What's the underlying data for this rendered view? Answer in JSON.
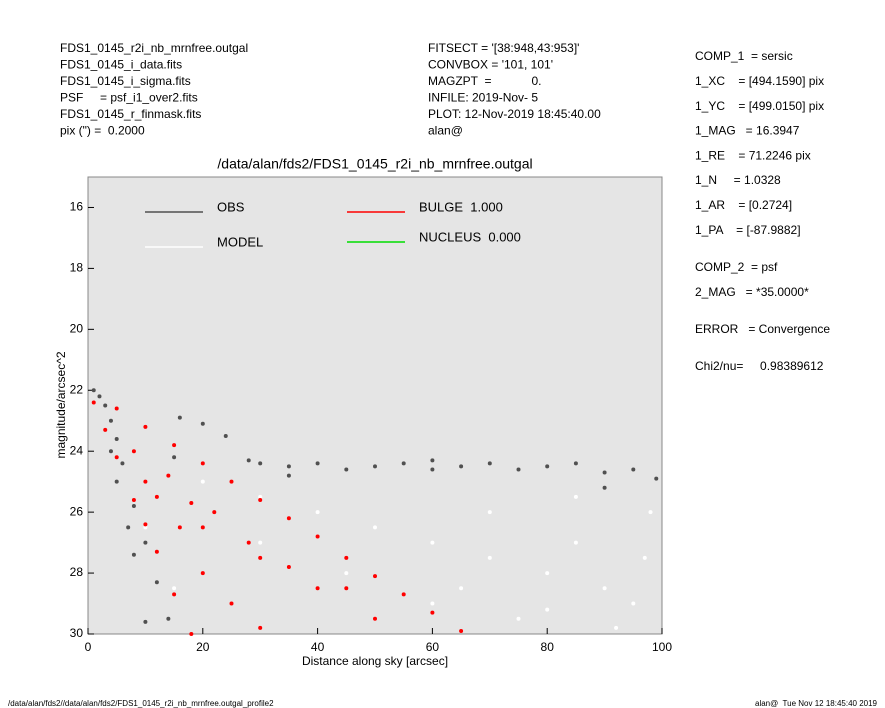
{
  "header": {
    "left": [
      "FDS1_0145_r2i_nb_mrnfree.outgal",
      "FDS1_0145_i_data.fits",
      "FDS1_0145_i_sigma.fits",
      "PSF     = psf_i1_over2.fits",
      "FDS1_0145_r_finmask.fits",
      "pix (\") =  0.2000"
    ],
    "middle": [
      "FITSECT = '[38:948,43:953]'",
      "CONVBOX = '101, 101'",
      "MAGZPT  =            0.",
      "INFILE: 2019-Nov- 5",
      "PLOT: 12-Nov-2019 18:45:40.00",
      "alan@"
    ]
  },
  "params": {
    "comp1": [
      "COMP_1  = sersic",
      "1_XC    = [494.1590] pix",
      "1_YC    = [499.0150] pix",
      "1_MAG   = 16.3947",
      "1_RE    = 71.2246 pix",
      "1_N     = 1.0328",
      "1_AR    = [0.2724]",
      "1_PA    = [-87.9882]"
    ],
    "comp2": [
      "COMP_2  = psf",
      "2_MAG   = *35.0000*"
    ],
    "error": "ERROR   = Convergence",
    "chi": "Chi2/nu=     0.98389612"
  },
  "footer": {
    "left": "/data/alan/fds2//data/alan/fds2/FDS1_0145_r2i_nb_mrnfree.outgal_profile2",
    "right": "alan@  Tue Nov 12 18:45:40 2019"
  },
  "chart_data": {
    "type": "scatter",
    "title": "/data/alan/fds2/FDS1_0145_r2i_nb_mrnfree.outgal",
    "x_label": "Distance along sky [arcsec]",
    "y_label": "magnitude/arcsec^2",
    "xlim": [
      0,
      100
    ],
    "ylim": [
      30,
      15
    ],
    "xticks": [
      0,
      20,
      40,
      60,
      80,
      100
    ],
    "yticks": [
      16,
      18,
      20,
      22,
      24,
      26,
      28,
      30
    ],
    "background": "#e5e5e5",
    "series": [
      {
        "name": "OBS",
        "color": "#505050",
        "x": [
          1,
          2,
          3,
          4,
          5,
          6,
          8,
          10,
          12,
          14,
          16,
          20,
          24,
          28,
          30,
          35,
          40,
          45,
          50,
          55,
          60,
          65,
          70,
          75,
          80,
          85,
          90,
          95,
          99,
          5,
          8,
          10,
          15,
          35,
          60,
          90,
          4,
          7
        ],
        "values": [
          22.0,
          22.2,
          22.5,
          23.0,
          23.6,
          24.4,
          25.8,
          27.0,
          28.3,
          29.5,
          22.9,
          23.1,
          23.5,
          24.3,
          24.4,
          24.5,
          24.4,
          24.6,
          24.5,
          24.4,
          24.6,
          24.5,
          24.4,
          24.6,
          24.5,
          24.4,
          24.7,
          24.6,
          24.9,
          25.0,
          27.4,
          29.6,
          24.2,
          24.8,
          24.3,
          25.2,
          24.0,
          26.5
        ]
      },
      {
        "name": "MODEL",
        "color": "#ffffff",
        "x": [
          20,
          30,
          40,
          50,
          60,
          70,
          80,
          90,
          95,
          30,
          45,
          60,
          75,
          85,
          98,
          50,
          65,
          80,
          92,
          70,
          85,
          97,
          10,
          15
        ],
        "values": [
          25.0,
          25.5,
          26.0,
          26.5,
          27.0,
          27.5,
          28.0,
          28.5,
          29.0,
          27.0,
          28.0,
          29.0,
          29.5,
          27.0,
          26.0,
          29.5,
          28.5,
          29.2,
          29.8,
          26.0,
          25.5,
          27.5,
          26.5,
          28.5
        ]
      },
      {
        "name": "BULGE  1.000",
        "color": "#ff0000",
        "x": [
          1,
          3,
          5,
          8,
          10,
          12,
          15,
          18,
          5,
          10,
          15,
          20,
          25,
          30,
          35,
          40,
          45,
          50,
          55,
          60,
          65,
          10,
          20,
          30,
          40,
          50,
          8,
          12,
          16,
          20,
          25,
          30,
          14,
          18,
          22,
          28,
          35,
          45
        ],
        "values": [
          22.4,
          23.3,
          24.2,
          25.6,
          26.4,
          27.3,
          28.7,
          30.0,
          22.6,
          23.2,
          23.8,
          24.4,
          25.0,
          25.6,
          26.2,
          26.8,
          27.5,
          28.1,
          28.7,
          29.3,
          29.9,
          25.0,
          26.5,
          27.5,
          28.5,
          29.5,
          24.0,
          25.5,
          26.5,
          28.0,
          29.0,
          29.8,
          24.8,
          25.7,
          26.0,
          27.0,
          27.8,
          28.5
        ]
      },
      {
        "name": "NUCLEUS  0.000",
        "color": "#00dd00",
        "x": [],
        "values": []
      }
    ]
  }
}
